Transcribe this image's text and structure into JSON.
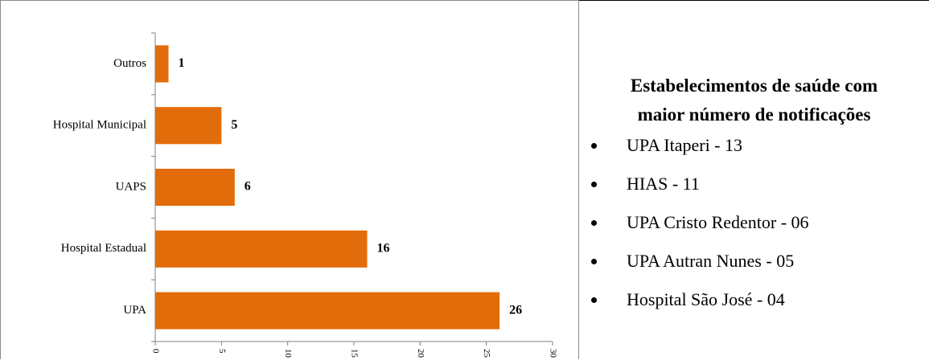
{
  "chart_data": {
    "type": "bar",
    "orientation": "horizontal",
    "categories": [
      "Outros",
      "Hospital Municipal",
      "UAPS",
      "Hospital Estadual",
      "UPA"
    ],
    "values": [
      1,
      5,
      6,
      16,
      26
    ],
    "data_labels": [
      "1",
      "5",
      "6",
      "16",
      "26"
    ],
    "xticks": [
      "0",
      "5",
      "10",
      "15",
      "20",
      "25",
      "30"
    ],
    "xlim": [
      0,
      30
    ],
    "bar_color": "#e36c0a",
    "grid": false,
    "legend": "none"
  },
  "info": {
    "title_line1": "Estabelecimentos de saúde com",
    "title_line2": "maior número de notificações",
    "items": [
      "UPA Itaperi - 13",
      "HIAS - 11",
      "UPA Cristo Redentor - 06",
      "UPA Autran Nunes - 05",
      "Hospital São José - 04"
    ]
  }
}
